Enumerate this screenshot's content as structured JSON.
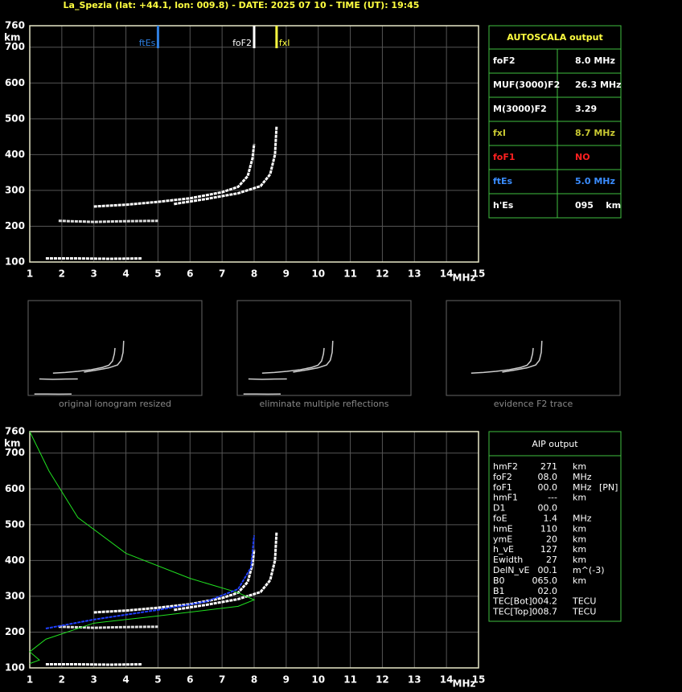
{
  "title": "La_Spezia (lat: +44.1, lon: 009.8) - DATE: 2025 07 10 - TIME (UT): 19:45",
  "ionogram": {
    "xlim": [
      1,
      15
    ],
    "ylim": [
      100,
      760
    ],
    "xticks": [
      1,
      2,
      3,
      4,
      5,
      6,
      7,
      8,
      9,
      10,
      11,
      12,
      13,
      14,
      15
    ],
    "yticks": [
      100,
      200,
      300,
      400,
      500,
      600,
      700,
      760
    ],
    "xunit": "MHz",
    "yunit": "km",
    "markers": [
      {
        "label": "ftEs",
        "value": 5.0,
        "color": "#2f7fe0"
      },
      {
        "label": "foF2",
        "value": 8.0,
        "color": "#ffffff"
      },
      {
        "label": "fxI",
        "value": 8.7,
        "color": "#ffff40"
      }
    ],
    "o_trace": [
      [
        3.0,
        255
      ],
      [
        4.0,
        260
      ],
      [
        5.0,
        268
      ],
      [
        6.0,
        278
      ],
      [
        7.0,
        295
      ],
      [
        7.5,
        310
      ],
      [
        7.8,
        340
      ],
      [
        7.95,
        390
      ],
      [
        8.0,
        430
      ]
    ],
    "x_trace": [
      [
        5.5,
        262
      ],
      [
        6.5,
        276
      ],
      [
        7.5,
        292
      ],
      [
        8.2,
        312
      ],
      [
        8.5,
        345
      ],
      [
        8.65,
        400
      ],
      [
        8.7,
        480
      ]
    ],
    "es_trace": [
      [
        1.9,
        215
      ],
      [
        3.0,
        212
      ],
      [
        4.0,
        214
      ],
      [
        5.0,
        215
      ]
    ],
    "e_trace": [
      [
        1.5,
        110
      ],
      [
        2.5,
        110
      ],
      [
        3.5,
        109
      ],
      [
        4.5,
        110
      ]
    ]
  },
  "autoscala": {
    "title": "AUTOSCALA output",
    "rows": [
      {
        "name": "foF2",
        "value": "8.0 MHz",
        "color": "#ffffff"
      },
      {
        "name": "MUF(3000)F2",
        "value": "26.3 MHz",
        "color": "#ffffff"
      },
      {
        "name": "M(3000)F2",
        "value": "3.29",
        "color": "#ffffff"
      },
      {
        "name": "fxI",
        "value": "8.7 MHz",
        "color": "#c8c832"
      },
      {
        "name": "foF1",
        "value": "NO",
        "color": "#ff2020"
      },
      {
        "name": "ftEs",
        "value": "5.0 MHz",
        "color": "#3a8cff"
      },
      {
        "name": "h'Es",
        "value": "095    km",
        "color": "#ffffff"
      }
    ]
  },
  "thumbnails": [
    "original ionogram resized",
    "eliminate multiple reflections",
    "evidence F2 trace"
  ],
  "profile": {
    "green": [
      [
        1.0,
        760
      ],
      [
        1.6,
        650
      ],
      [
        2.5,
        520
      ],
      [
        4.0,
        420
      ],
      [
        6.0,
        350
      ],
      [
        7.5,
        310
      ],
      [
        8.0,
        290
      ],
      [
        7.5,
        272
      ],
      [
        5.0,
        245
      ],
      [
        3.0,
        225
      ],
      [
        1.5,
        180
      ],
      [
        1.0,
        145
      ],
      [
        1.3,
        122
      ],
      [
        1.0,
        112
      ]
    ],
    "blue": [
      [
        1.5,
        210
      ],
      [
        3.0,
        235
      ],
      [
        5.0,
        262
      ],
      [
        6.5,
        285
      ],
      [
        7.5,
        320
      ],
      [
        7.9,
        380
      ],
      [
        8.0,
        470
      ]
    ]
  },
  "aip": {
    "title": "AIP output",
    "rows": [
      [
        "hmF2",
        "271",
        "km",
        ""
      ],
      [
        "foF2",
        "08.0",
        "MHz",
        ""
      ],
      [
        "foF1",
        "00.0",
        "MHz",
        "[PN]"
      ],
      [
        "hmF1",
        "---",
        "km",
        ""
      ],
      [
        "D1",
        "00.0",
        "",
        ""
      ],
      [
        "foE",
        "1.4",
        "MHz",
        ""
      ],
      [
        "hmE",
        "110",
        "km",
        ""
      ],
      [
        "ymE",
        "20",
        "km",
        ""
      ],
      [
        "h_vE",
        "127",
        "km",
        ""
      ],
      [
        "Ewidth",
        "27",
        "km",
        ""
      ],
      [
        "DelN_vE",
        "00.1",
        "m^(-3)",
        ""
      ],
      [
        "B0",
        "065.0",
        "km",
        ""
      ],
      [
        "B1",
        "02.0",
        "",
        ""
      ],
      [
        "TEC[Bot]",
        "004.2",
        "TECU",
        ""
      ],
      [
        "TEC[Top]",
        "008.7",
        "TECU",
        ""
      ]
    ]
  }
}
